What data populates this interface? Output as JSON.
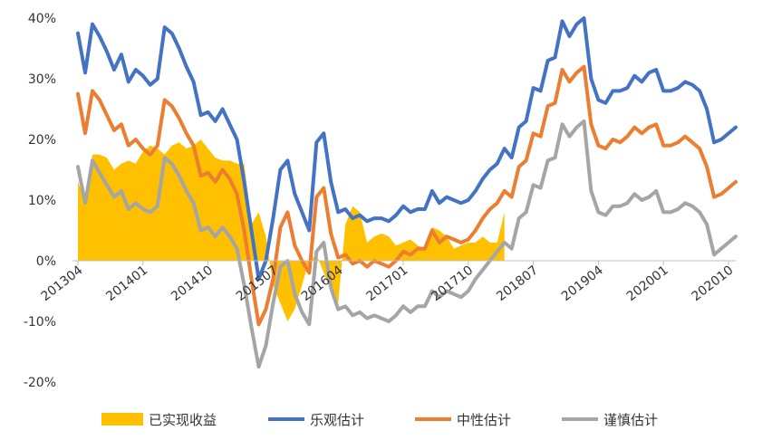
{
  "chart_data": {
    "type": "line",
    "title": "",
    "xlabel": "",
    "ylabel": "",
    "ylim": [
      -0.2,
      0.4
    ],
    "yticks": [
      "-20%",
      "-10%",
      "0%",
      "10%",
      "20%",
      "30%",
      "40%"
    ],
    "ytick_values": [
      -0.2,
      -0.1,
      0,
      0.1,
      0.2,
      0.3,
      0.4
    ],
    "x_tick_labels": [
      "201304",
      "201401",
      "201410",
      "201507",
      "201604",
      "201701",
      "201710",
      "201807",
      "201904",
      "202001",
      "202010"
    ],
    "x_tick_every": 9,
    "grid": false,
    "legend_position": "bottom",
    "series": [
      {
        "name": "已实现收益",
        "kind": "area",
        "color": "#FFC000",
        "values": [
          0.13,
          0.1,
          0.175,
          0.175,
          0.17,
          0.15,
          0.16,
          0.165,
          0.16,
          0.18,
          0.19,
          0.185,
          0.175,
          0.19,
          0.195,
          0.185,
          0.19,
          0.2,
          0.185,
          0.17,
          0.165,
          0.165,
          0.16,
          0.16,
          0.06,
          0.08,
          0.04,
          -0.04,
          -0.07,
          -0.1,
          -0.08,
          -0.04,
          0.0,
          0.01,
          -0.02,
          -0.05,
          -0.07,
          0.06,
          0.09,
          0.08,
          0.03,
          0.04,
          0.045,
          0.04,
          0.025,
          0.03,
          0.035,
          0.025,
          0.02,
          0.055,
          0.05,
          0.04,
          0.02,
          0.025,
          0.03,
          0.03,
          0.04,
          0.03,
          0.03,
          0.08
        ]
      },
      {
        "name": "乐观估计",
        "kind": "line",
        "color": "#4472C4",
        "values": [
          0.375,
          0.31,
          0.39,
          0.37,
          0.345,
          0.315,
          0.34,
          0.295,
          0.315,
          0.305,
          0.29,
          0.3,
          0.385,
          0.375,
          0.35,
          0.32,
          0.295,
          0.24,
          0.245,
          0.23,
          0.25,
          0.225,
          0.2,
          0.13,
          0.05,
          -0.03,
          0.0,
          0.07,
          0.15,
          0.165,
          0.11,
          0.08,
          0.05,
          0.195,
          0.21,
          0.13,
          0.08,
          0.085,
          0.07,
          0.075,
          0.065,
          0.07,
          0.07,
          0.065,
          0.075,
          0.09,
          0.08,
          0.085,
          0.085,
          0.115,
          0.095,
          0.105,
          0.1,
          0.095,
          0.1,
          0.115,
          0.135,
          0.15,
          0.16,
          0.185,
          0.17,
          0.22,
          0.23,
          0.285,
          0.28,
          0.33,
          0.335,
          0.395,
          0.37,
          0.39,
          0.4,
          0.3,
          0.265,
          0.26,
          0.28,
          0.28,
          0.285,
          0.305,
          0.295,
          0.31,
          0.315,
          0.28,
          0.28,
          0.285,
          0.295,
          0.29,
          0.28,
          0.25,
          0.195,
          0.2,
          0.21,
          0.22
        ]
      },
      {
        "name": "中性估计",
        "kind": "line",
        "color": "#ED7D31",
        "values": [
          0.275,
          0.21,
          0.28,
          0.265,
          0.24,
          0.215,
          0.225,
          0.19,
          0.2,
          0.185,
          0.175,
          0.19,
          0.265,
          0.255,
          0.235,
          0.21,
          0.19,
          0.14,
          0.145,
          0.13,
          0.15,
          0.135,
          0.11,
          0.05,
          -0.03,
          -0.105,
          -0.08,
          -0.03,
          0.055,
          0.08,
          0.025,
          0.0,
          -0.02,
          0.105,
          0.12,
          0.045,
          0.005,
          0.01,
          -0.005,
          0.0,
          -0.01,
          0.0,
          -0.005,
          -0.01,
          0.0,
          0.015,
          0.01,
          0.02,
          0.02,
          0.05,
          0.03,
          0.04,
          0.035,
          0.03,
          0.035,
          0.05,
          0.07,
          0.085,
          0.095,
          0.115,
          0.105,
          0.155,
          0.165,
          0.21,
          0.205,
          0.255,
          0.26,
          0.315,
          0.295,
          0.31,
          0.32,
          0.225,
          0.19,
          0.185,
          0.2,
          0.195,
          0.205,
          0.22,
          0.21,
          0.22,
          0.225,
          0.19,
          0.19,
          0.195,
          0.205,
          0.195,
          0.185,
          0.155,
          0.105,
          0.11,
          0.12,
          0.13
        ]
      },
      {
        "name": "谨慎估计",
        "kind": "line",
        "color": "#A5A5A5",
        "values": [
          0.155,
          0.095,
          0.165,
          0.145,
          0.125,
          0.105,
          0.115,
          0.085,
          0.095,
          0.085,
          0.08,
          0.09,
          0.17,
          0.16,
          0.14,
          0.115,
          0.095,
          0.05,
          0.055,
          0.04,
          0.055,
          0.04,
          0.02,
          -0.04,
          -0.11,
          -0.175,
          -0.14,
          -0.07,
          -0.01,
          0.0,
          -0.055,
          -0.085,
          -0.105,
          0.015,
          0.03,
          -0.045,
          -0.08,
          -0.075,
          -0.09,
          -0.085,
          -0.095,
          -0.09,
          -0.095,
          -0.1,
          -0.09,
          -0.075,
          -0.085,
          -0.075,
          -0.075,
          -0.05,
          -0.06,
          -0.05,
          -0.055,
          -0.06,
          -0.05,
          -0.03,
          -0.015,
          0.0,
          0.015,
          0.03,
          0.02,
          0.07,
          0.08,
          0.125,
          0.12,
          0.165,
          0.17,
          0.225,
          0.205,
          0.22,
          0.23,
          0.115,
          0.08,
          0.075,
          0.09,
          0.09,
          0.095,
          0.11,
          0.1,
          0.105,
          0.115,
          0.08,
          0.08,
          0.085,
          0.095,
          0.09,
          0.08,
          0.06,
          0.01,
          0.02,
          0.03,
          0.04
        ]
      }
    ],
    "series_display": [
      {
        "name": "谨慎估计",
        "color": "#A5A5A5"
      },
      {
        "name": "中性估计",
        "color": "#ED7D31"
      },
      {
        "name": "乐观估计",
        "color": "#4472C4"
      }
    ]
  }
}
